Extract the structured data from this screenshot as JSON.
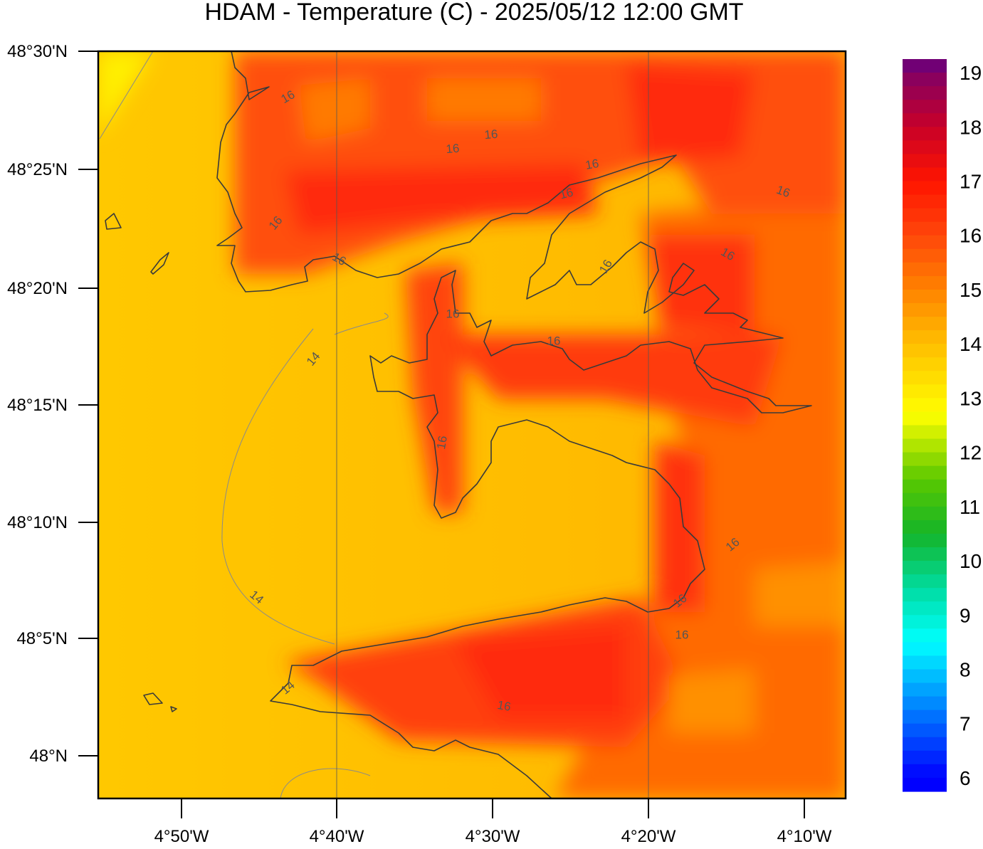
{
  "title": "HDAM - Temperature (C)  -  2025/05/12  12:00 GMT",
  "lat_ticks": [
    "48°30'N",
    "48°25'N",
    "48°20'N",
    "48°15'N",
    "48°10'N",
    "48°5'N",
    "48°N"
  ],
  "lon_ticks": [
    "4°50'W",
    "4°40'W",
    "4°30'W",
    "4°20'W",
    "4°10'W"
  ],
  "colorbar": {
    "range": [
      5.75,
      19.25
    ],
    "ticks": [
      19,
      18,
      17,
      16,
      15,
      14,
      13,
      12,
      11,
      10,
      9,
      8,
      7,
      6
    ]
  },
  "contour_labels": [
    "16",
    "16",
    "16",
    "16",
    "16",
    "16",
    "16",
    "16",
    "16",
    "16",
    "16",
    "16",
    "16",
    "16",
    "16",
    "16",
    "16",
    "14",
    "14",
    "14"
  ]
}
